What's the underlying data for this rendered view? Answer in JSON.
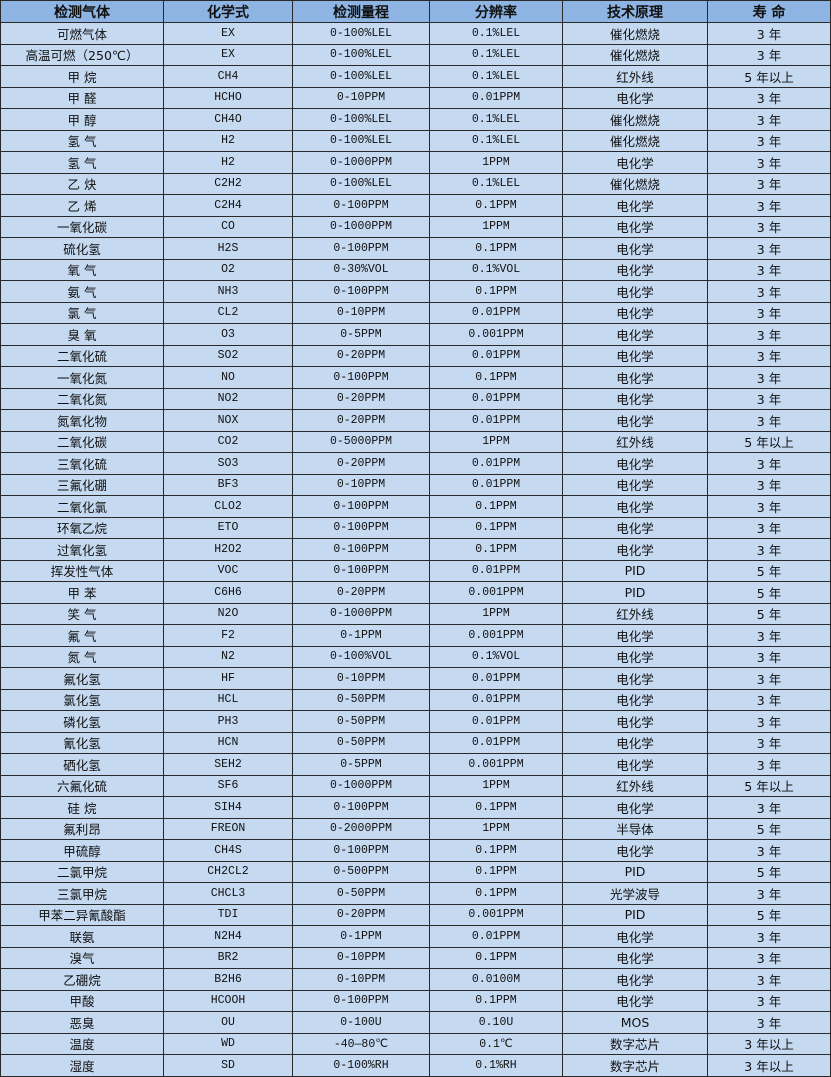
{
  "header_color": "#8db4e2",
  "row_color": "#c5d9f1",
  "columns": [
    "检测气体",
    "化学式",
    "检测量程",
    "分辨率",
    "技术原理",
    "寿 命"
  ],
  "rows": [
    [
      "可燃气体",
      "EX",
      "0-100%LEL",
      "0.1%LEL",
      "催化燃烧",
      "3 年"
    ],
    [
      "高温可燃（250℃）",
      "EX",
      "0-100%LEL",
      "0.1%LEL",
      "催化燃烧",
      "3 年"
    ],
    [
      "甲 烷",
      "CH4",
      "0-100%LEL",
      "0.1%LEL",
      "红外线",
      "5 年以上"
    ],
    [
      "甲 醛",
      "HCHO",
      "0-10PPM",
      "0.01PPM",
      "电化学",
      "3 年"
    ],
    [
      "甲 醇",
      "CH4O",
      "0-100%LEL",
      "0.1%LEL",
      "催化燃烧",
      "3 年"
    ],
    [
      "氢 气",
      "H2",
      "0-100%LEL",
      "0.1%LEL",
      "催化燃烧",
      "3 年"
    ],
    [
      "氢 气",
      "H2",
      "0-1000PPM",
      "1PPM",
      "电化学",
      "3 年"
    ],
    [
      "乙 炔",
      "C2H2",
      "0-100%LEL",
      "0.1%LEL",
      "催化燃烧",
      "3 年"
    ],
    [
      "乙 烯",
      "C2H4",
      "0-100PPM",
      "0.1PPM",
      "电化学",
      "3 年"
    ],
    [
      "一氧化碳",
      "CO",
      "0-1000PPM",
      "1PPM",
      "电化学",
      "3 年"
    ],
    [
      "硫化氢",
      "H2S",
      "0-100PPM",
      "0.1PPM",
      "电化学",
      "3 年"
    ],
    [
      "氧 气",
      "O2",
      "0-30%VOL",
      "0.1%VOL",
      "电化学",
      "3 年"
    ],
    [
      "氨 气",
      "NH3",
      "0-100PPM",
      "0.1PPM",
      "电化学",
      "3 年"
    ],
    [
      "氯 气",
      "CL2",
      "0-10PPM",
      "0.01PPM",
      "电化学",
      "3 年"
    ],
    [
      "臭 氧",
      "O3",
      "0-5PPM",
      "0.001PPM",
      "电化学",
      "3 年"
    ],
    [
      "二氧化硫",
      "SO2",
      "0-20PPM",
      "0.01PPM",
      "电化学",
      "3 年"
    ],
    [
      "一氧化氮",
      "NO",
      "0-100PPM",
      "0.1PPM",
      "电化学",
      "3 年"
    ],
    [
      "二氧化氮",
      "NO2",
      "0-20PPM",
      "0.01PPM",
      "电化学",
      "3 年"
    ],
    [
      "氮氧化物",
      "NOX",
      "0-20PPM",
      "0.01PPM",
      "电化学",
      "3 年"
    ],
    [
      "二氧化碳",
      "CO2",
      "0-5000PPM",
      "1PPM",
      "红外线",
      "5 年以上"
    ],
    [
      "三氧化硫",
      "SO3",
      "0-20PPM",
      "0.01PPM",
      "电化学",
      "3 年"
    ],
    [
      "三氟化硼",
      "BF3",
      "0-10PPM",
      "0.01PPM",
      "电化学",
      "3 年"
    ],
    [
      "二氧化氯",
      "CLO2",
      "0-100PPM",
      "0.1PPM",
      "电化学",
      "3 年"
    ],
    [
      "环氧乙烷",
      "ETO",
      "0-100PPM",
      "0.1PPM",
      "电化学",
      "3 年"
    ],
    [
      "过氧化氢",
      "H2O2",
      "0-100PPM",
      "0.1PPM",
      "电化学",
      "3 年"
    ],
    [
      "挥发性气体",
      "VOC",
      "0-100PPM",
      "0.01PPM",
      "PID",
      "5 年"
    ],
    [
      "甲 苯",
      "C6H6",
      "0-20PPM",
      "0.001PPM",
      "PID",
      "5 年"
    ],
    [
      "笑 气",
      "N2O",
      "0-1000PPM",
      "1PPM",
      "红外线",
      "5 年"
    ],
    [
      "氟 气",
      "F2",
      "0-1PPM",
      "0.001PPM",
      "电化学",
      "3 年"
    ],
    [
      "氮 气",
      "N2",
      "0-100%VOL",
      "0.1%VOL",
      "电化学",
      "3 年"
    ],
    [
      "氟化氢",
      "HF",
      "0-10PPM",
      "0.01PPM",
      "电化学",
      "3 年"
    ],
    [
      "氯化氢",
      "HCL",
      "0-50PPM",
      "0.01PPM",
      "电化学",
      "3 年"
    ],
    [
      "磷化氢",
      "PH3",
      "0-50PPM",
      "0.01PPM",
      "电化学",
      "3 年"
    ],
    [
      "氰化氢",
      "HCN",
      "0-50PPM",
      "0.01PPM",
      "电化学",
      "3 年"
    ],
    [
      "硒化氢",
      "SEH2",
      "0-5PPM",
      "0.001PPM",
      "电化学",
      "3 年"
    ],
    [
      "六氟化硫",
      "SF6",
      "0-1000PPM",
      "1PPM",
      "红外线",
      "5 年以上"
    ],
    [
      "硅 烷",
      "SIH4",
      "0-100PPM",
      "0.1PPM",
      "电化学",
      "3 年"
    ],
    [
      "氟利昂",
      "FREON",
      "0-2000PPM",
      "1PPM",
      "半导体",
      "5 年"
    ],
    [
      "甲硫醇",
      "CH4S",
      "0-100PPM",
      "0.1PPM",
      "电化学",
      "3 年"
    ],
    [
      "二氯甲烷",
      "CH2CL2",
      "0-500PPM",
      "0.1PPM",
      "PID",
      "5 年"
    ],
    [
      "三氯甲烷",
      "CHCL3",
      "0-50PPM",
      "0.1PPM",
      "光学波导",
      "3 年"
    ],
    [
      "甲苯二异氰酸酯",
      "TDI",
      "0-20PPM",
      "0.001PPM",
      "PID",
      "5 年"
    ],
    [
      "联氨",
      "N2H4",
      "0-1PPM",
      "0.01PPM",
      "电化学",
      "3 年"
    ],
    [
      "溴气",
      "BR2",
      "0-10PPM",
      "0.1PPM",
      "电化学",
      "3 年"
    ],
    [
      "乙硼烷",
      "B2H6",
      "0-10PPM",
      "0.0100M",
      "电化学",
      "3 年"
    ],
    [
      "甲酸",
      "HCOOH",
      "0-100PPM",
      "0.1PPM",
      "电化学",
      "3 年"
    ],
    [
      "恶臭",
      "OU",
      "0-100U",
      "0.10U",
      "MOS",
      "3 年"
    ],
    [
      "温度",
      "WD",
      "-40—80℃",
      "0.1℃",
      "数字芯片",
      "3 年以上"
    ],
    [
      "湿度",
      "SD",
      "0-100%RH",
      "0.1%RH",
      "数字芯片",
      "3 年以上"
    ]
  ]
}
